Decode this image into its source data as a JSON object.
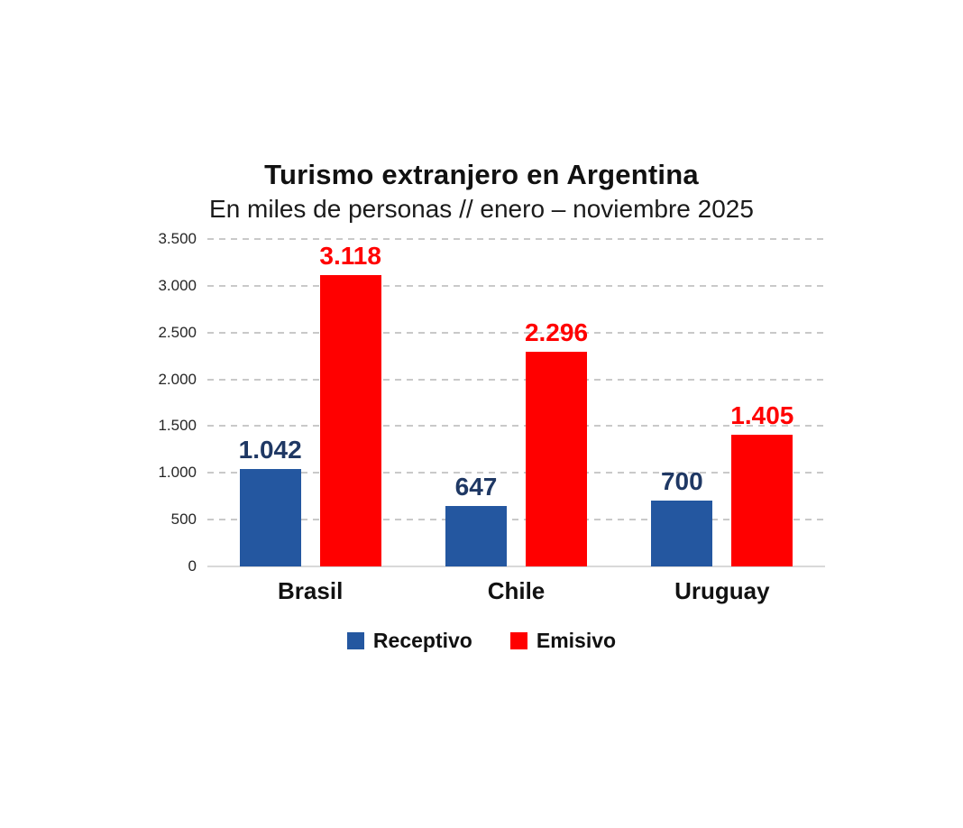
{
  "title": "Turismo extranjero en Argentina",
  "subtitle": "En miles de personas // enero – noviembre 2025",
  "chart_data": {
    "type": "bar",
    "title": "Turismo extranjero en Argentina",
    "subtitle": "En miles de personas // enero – noviembre 2025",
    "categories": [
      "Brasil",
      "Chile",
      "Uruguay"
    ],
    "series": [
      {
        "name": "Receptivo",
        "color": "#2457A0",
        "label_color": "#1F3864",
        "values": [
          1042,
          647,
          700
        ],
        "labels": [
          "1.042",
          "647",
          "700"
        ]
      },
      {
        "name": "Emisivo",
        "color": "#FF0000",
        "label_color": "#FF0000",
        "values": [
          3118,
          2296,
          1405
        ],
        "labels": [
          "3.118",
          "2.296",
          "1.405"
        ]
      }
    ],
    "ylim": [
      0,
      3500
    ],
    "ytick_step": 500,
    "yticks": [
      "3.500",
      "3.000",
      "2.500",
      "2.000",
      "1.500",
      "1.000",
      "500",
      "0"
    ],
    "grid": "horizontal-dashed",
    "gridline_color": "#c9c9c9",
    "legend_position": "bottom"
  },
  "legend": {
    "items": [
      {
        "label": "Receptivo",
        "color": "#2457A0"
      },
      {
        "label": "Emisivo",
        "color": "#FF0000"
      }
    ]
  }
}
